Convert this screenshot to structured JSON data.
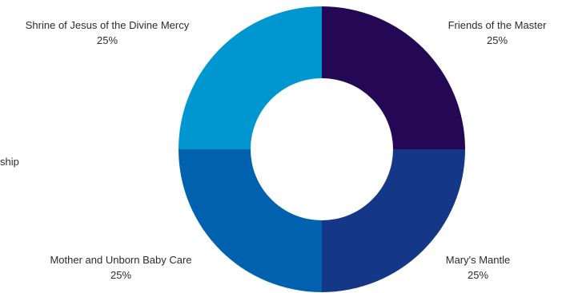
{
  "chart_data": {
    "type": "pie",
    "style": "donut",
    "slices": [
      {
        "label": "Friends of the Master",
        "pct_label": "25%",
        "value": 25,
        "color": "#240755"
      },
      {
        "label": "Mary's Mantle",
        "pct_label": "25%",
        "value": 25,
        "color": "#143787"
      },
      {
        "label": "Mother and Unborn Baby Care",
        "pct_label": "25%",
        "value": 25,
        "color": "#0062AE"
      },
      {
        "label": "Shrine of Jesus of the Divine Mercy",
        "pct_label": "25%",
        "value": 25,
        "color": "#0096D0"
      }
    ],
    "cutoff_label": "ship"
  }
}
